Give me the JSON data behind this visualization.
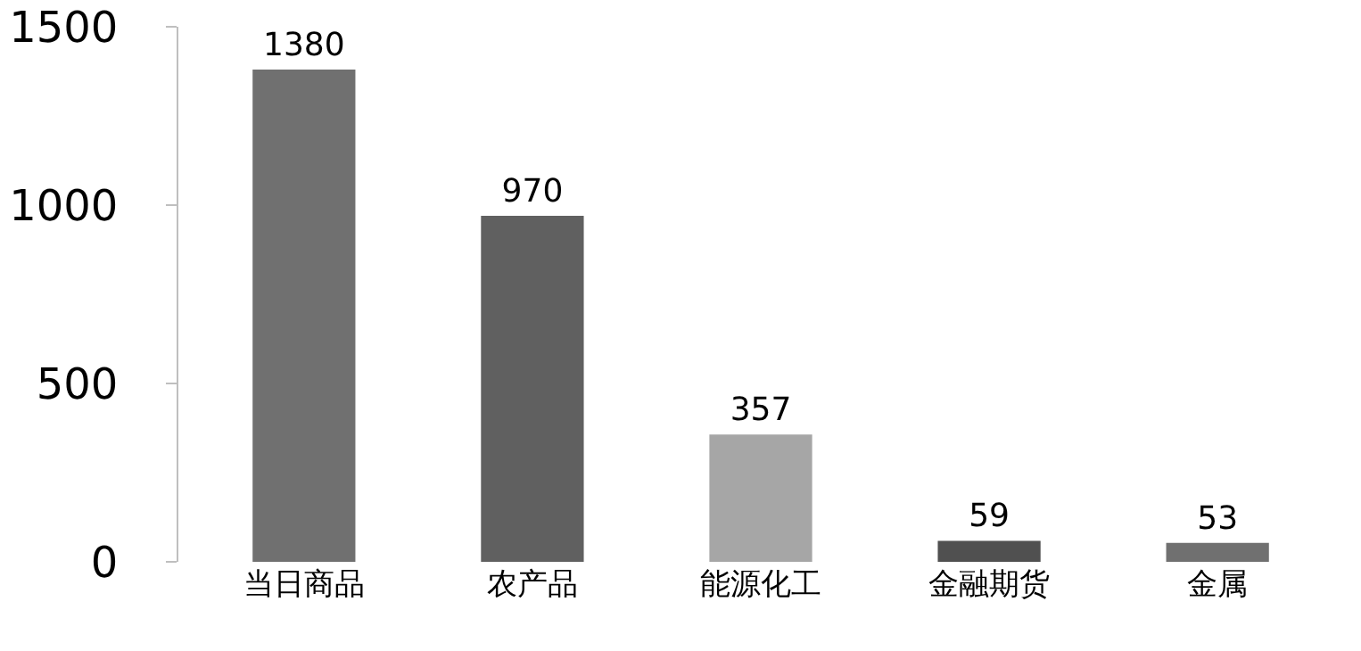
{
  "chart_data": {
    "type": "bar",
    "categories": [
      "当日商品",
      "农产品",
      "能源化工",
      "金融期货",
      "金属"
    ],
    "values": [
      1380,
      970,
      357,
      59,
      53
    ],
    "colors": [
      "#707070",
      "#606060",
      "#a6a6a6",
      "#505050",
      "#707070"
    ],
    "ylim": [
      0,
      1500
    ],
    "yticks": [
      0,
      500,
      1000,
      1500
    ],
    "grid": false,
    "data_labels": true
  }
}
